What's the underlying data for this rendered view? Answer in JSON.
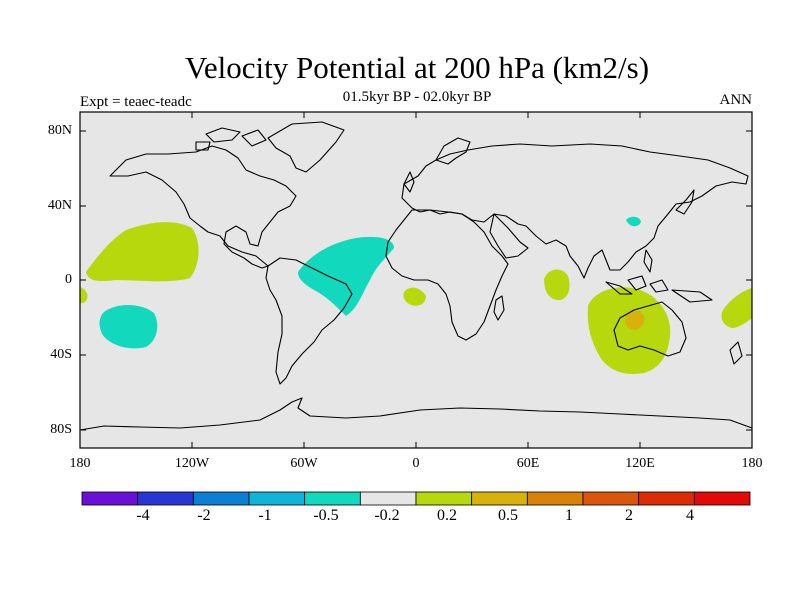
{
  "header": {
    "title": "Velocity Potential at 200 hPa (km2/s)",
    "subtitle": "01.5kyr BP - 02.0kyr BP",
    "left_label": "Expt = teaec-teadc",
    "right_label": "ANN"
  },
  "map": {
    "projection": "cylindrical-equidistant",
    "lon_range": [
      -180,
      180
    ],
    "lat_range": [
      -90,
      90
    ],
    "background_color": "#e6e6e6",
    "y_ticks": [
      "80N",
      "40N",
      "0",
      "40S",
      "80S"
    ],
    "x_ticks": [
      "180",
      "120W",
      "60W",
      "0",
      "60E",
      "120E",
      "180"
    ]
  },
  "colorbar": {
    "colors": [
      "#6a0fd8",
      "#2a36d4",
      "#0b7fd6",
      "#10b4d8",
      "#12d9bd",
      "#e6e6e6",
      "#b8d80e",
      "#d8b20c",
      "#d98109",
      "#d9560a",
      "#dc2c07",
      "#e10a06"
    ],
    "labels": [
      "-4",
      "-2",
      "-1",
      "-0.5",
      "-0.2",
      "0.2",
      "0.5",
      "1",
      "2",
      "4"
    ]
  },
  "shading": [
    {
      "region": "central-pacific-north",
      "sign": "positive",
      "color": "#b8d80e"
    },
    {
      "region": "western-pacific-edge",
      "sign": "positive",
      "color": "#b8d80e"
    },
    {
      "region": "south-pacific",
      "sign": "negative",
      "color": "#12d9bd"
    },
    {
      "region": "tropical-atlantic",
      "sign": "negative",
      "color": "#12d9bd"
    },
    {
      "region": "gulf-of-guinea",
      "sign": "positive",
      "color": "#b8d80e"
    },
    {
      "region": "western-indian-ocean",
      "sign": "positive",
      "color": "#b8d80e"
    },
    {
      "region": "east-asia",
      "sign": "negative",
      "color": "#12d9bd"
    },
    {
      "region": "maritime-continent-australia",
      "sign": "positive",
      "color": "#b8d80e"
    },
    {
      "region": "western-australia-core",
      "sign": "positive",
      "color": "#d8b20c"
    },
    {
      "region": "southwest-pacific",
      "sign": "positive",
      "color": "#b8d80e"
    }
  ]
}
